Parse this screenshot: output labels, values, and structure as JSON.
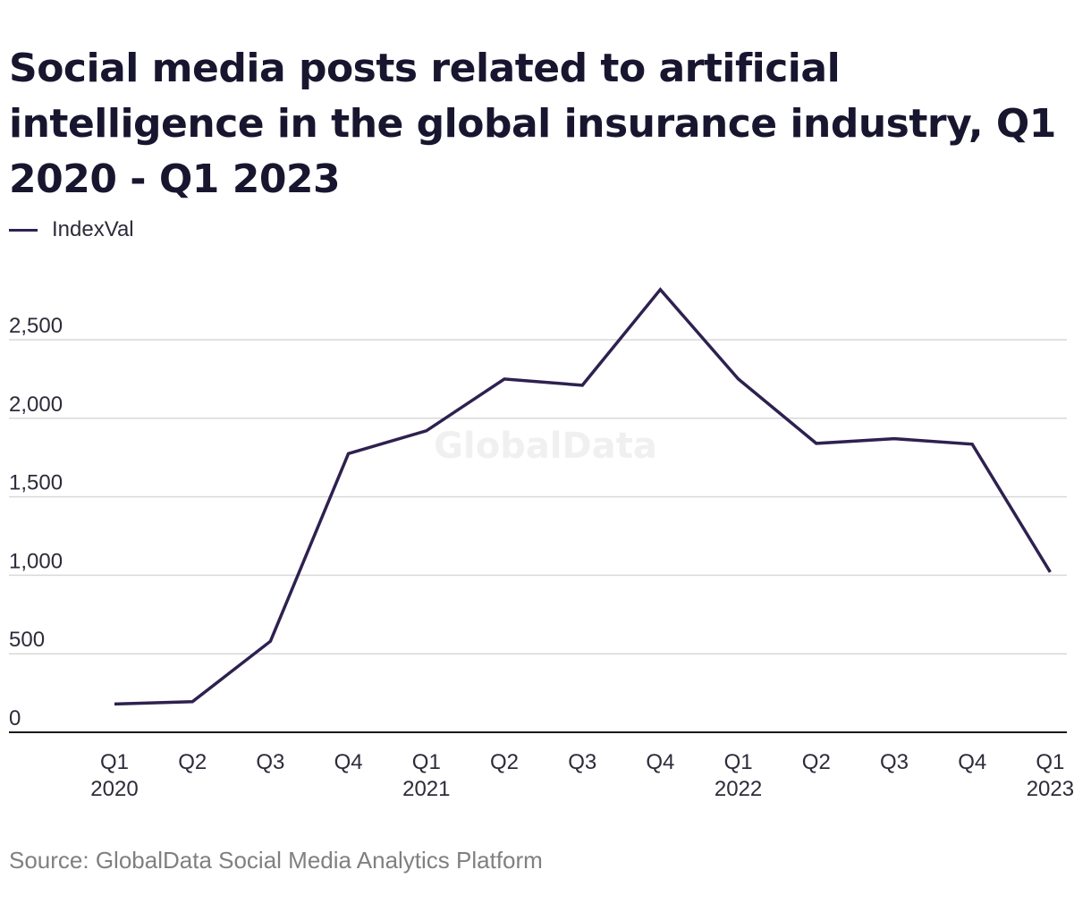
{
  "title": "Social media posts related to artificial intelligence in the global insurance industry, Q1 2020 - Q1 2023",
  "legend": {
    "label": "IndexVal"
  },
  "watermark": "GlobalData",
  "source": "Source: GlobalData Social Media Analytics Platform",
  "colors": {
    "line": "#2e2150",
    "grid": "#d9d9d9",
    "axis": "#1a1a1a"
  },
  "chart_data": {
    "type": "line",
    "categories": [
      [
        "Q1",
        "2020"
      ],
      [
        "Q2",
        ""
      ],
      [
        "Q3",
        ""
      ],
      [
        "Q4",
        ""
      ],
      [
        "Q1",
        "2021"
      ],
      [
        "Q2",
        ""
      ],
      [
        "Q3",
        ""
      ],
      [
        "Q4",
        ""
      ],
      [
        "Q1",
        "2022"
      ],
      [
        "Q2",
        ""
      ],
      [
        "Q3",
        ""
      ],
      [
        "Q4",
        ""
      ],
      [
        "Q1",
        "2023"
      ]
    ],
    "series": [
      {
        "name": "IndexVal",
        "values": [
          180,
          195,
          580,
          1775,
          1920,
          2250,
          2210,
          2820,
          2250,
          1840,
          1870,
          1835,
          1020
        ]
      }
    ],
    "ylim": [
      0,
      2900
    ],
    "yticks": [
      0,
      500,
      1000,
      1500,
      2000,
      2500
    ],
    "ytick_labels": [
      "0",
      "500",
      "1,000",
      "1,500",
      "2,000",
      "2,500"
    ],
    "xlabel": "",
    "ylabel": "",
    "grid": true,
    "legend_position": "top-left"
  }
}
